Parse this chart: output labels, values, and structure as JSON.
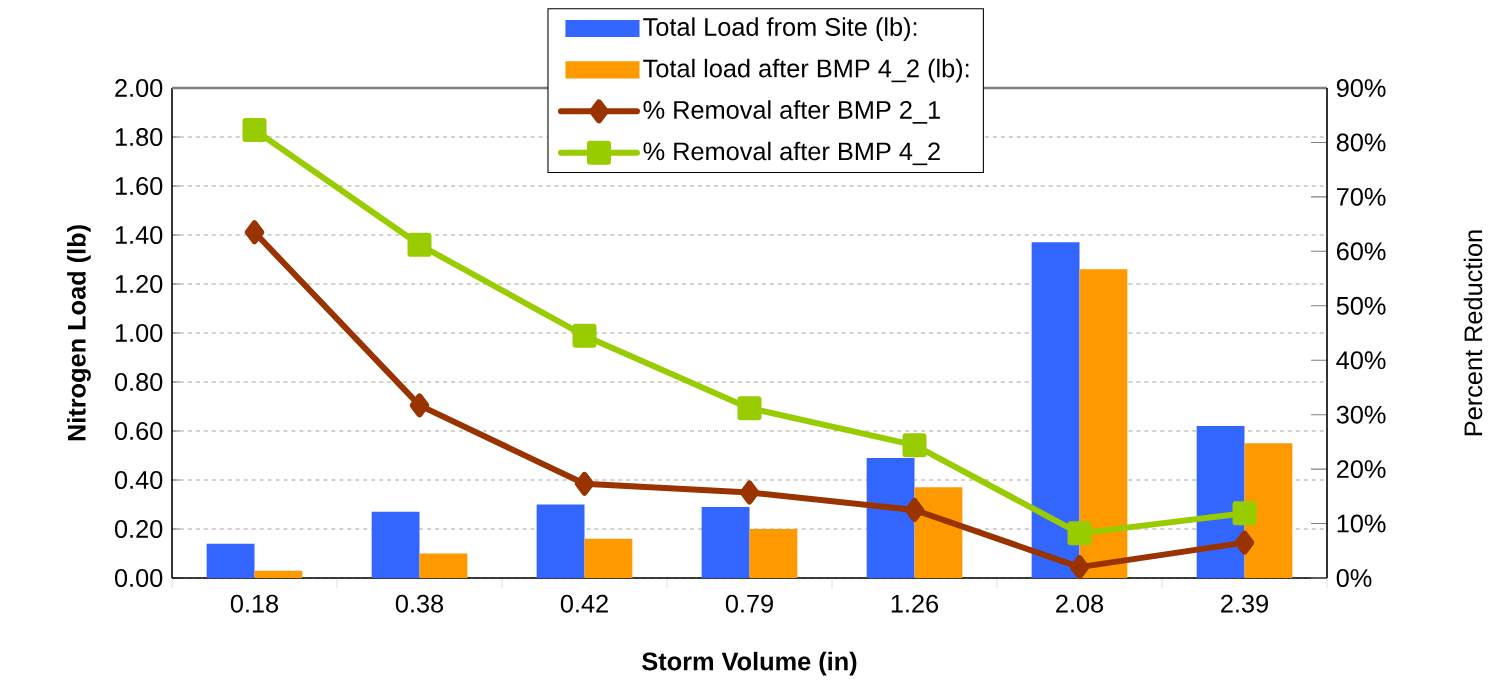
{
  "chart_data": {
    "type": "bar",
    "xlabel": "Storm Volume (in)",
    "ylabel": "Nitrogen Load (lb)",
    "y2label": "Percent Reduction",
    "categories": [
      "0.18",
      "0.38",
      "0.42",
      "0.79",
      "1.26",
      "2.08",
      "2.39"
    ],
    "series": [
      {
        "name": "Total Load from Site (lb):",
        "color": "#3366ff",
        "values": [
          0.14,
          0.27,
          0.3,
          0.29,
          0.49,
          1.37,
          0.62
        ]
      },
      {
        "name": "Total load after BMP 4_2 (lb):",
        "color": "#ff9900",
        "values": [
          0.03,
          0.1,
          0.16,
          0.2,
          0.37,
          1.26,
          0.55
        ]
      },
      {
        "name": "% Removal after BMP 2_1",
        "type": "line",
        "axis": "y2",
        "marker": "diamond",
        "color": "#993300",
        "values": [
          63.5,
          31.7,
          17.3,
          15.7,
          12.5,
          2.0,
          6.5
        ]
      },
      {
        "name": "% Removal after BMP 4_2",
        "type": "line",
        "axis": "y2",
        "marker": "square",
        "color": "#99cc00",
        "values": [
          82.3,
          61.2,
          44.5,
          31.2,
          24.4,
          8.2,
          11.9
        ]
      }
    ],
    "ylim": [
      0,
      2
    ],
    "yticks": [
      {
        "value": 0,
        "label": "0.00"
      },
      {
        "value": 0.2,
        "label": "0.20"
      },
      {
        "value": 0.4,
        "label": "0.40"
      },
      {
        "value": 0.6,
        "label": "0.60"
      },
      {
        "value": 0.8,
        "label": "0.80"
      },
      {
        "value": 1.0,
        "label": "1.00"
      },
      {
        "value": 1.2,
        "label": "1.20"
      },
      {
        "value": 1.4,
        "label": "1.40"
      },
      {
        "value": 1.6,
        "label": "1.60"
      },
      {
        "value": 1.8,
        "label": "1.80"
      },
      {
        "value": 2.0,
        "label": "2.00"
      }
    ],
    "y2lim": [
      0,
      90
    ],
    "y2ticks": [
      {
        "value": 0,
        "label": "0%"
      },
      {
        "value": 10,
        "label": "10%"
      },
      {
        "value": 20,
        "label": "20%"
      },
      {
        "value": 30,
        "label": "30%"
      },
      {
        "value": 40,
        "label": "40%"
      },
      {
        "value": 50,
        "label": "50%"
      },
      {
        "value": 60,
        "label": "60%"
      },
      {
        "value": 70,
        "label": "70%"
      },
      {
        "value": 80,
        "label": "80%"
      },
      {
        "value": 90,
        "label": "90%"
      }
    ],
    "grid": "y",
    "legend": "top"
  }
}
